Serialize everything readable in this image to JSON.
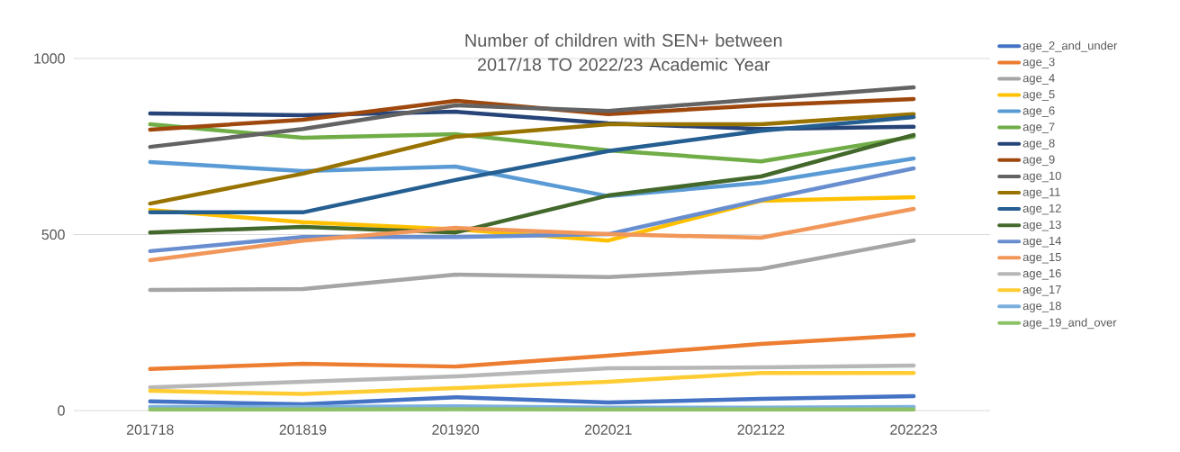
{
  "chart_data": {
    "type": "line",
    "title": "Number of children with SEN+ between 2017/18 TO 2022/23 Academic Year",
    "categories": [
      "201718",
      "201819",
      "201920",
      "202021",
      "202122",
      "202223"
    ],
    "ylim": [
      0,
      1000
    ],
    "yticks": [
      0,
      500,
      1000
    ],
    "grid": "y",
    "legend": "right",
    "marker": "none",
    "line_style": "solid",
    "series": [
      {
        "name": "age_2_and_under",
        "color": "#4472c4",
        "values": [
          26,
          18,
          38,
          23,
          33,
          41
        ]
      },
      {
        "name": "age_3",
        "color": "#ed7d31",
        "values": [
          118,
          133,
          125,
          156,
          189,
          215
        ]
      },
      {
        "name": "age_4",
        "color": "#a5a5a5",
        "values": [
          343,
          345,
          386,
          379,
          402,
          483
        ]
      },
      {
        "name": "age_5",
        "color": "#ffc000",
        "values": [
          570,
          535,
          515,
          483,
          596,
          606
        ]
      },
      {
        "name": "age_6",
        "color": "#5b9bd5",
        "values": [
          706,
          680,
          693,
          609,
          647,
          716
        ]
      },
      {
        "name": "age_7",
        "color": "#70ad47",
        "values": [
          813,
          775,
          785,
          739,
          708,
          778
        ]
      },
      {
        "name": "age_8",
        "color": "#264478",
        "values": [
          844,
          839,
          849,
          816,
          800,
          806
        ]
      },
      {
        "name": "age_9",
        "color": "#9e480e",
        "values": [
          798,
          826,
          880,
          842,
          867,
          885
        ]
      },
      {
        "name": "age_10",
        "color": "#636363",
        "values": [
          749,
          800,
          867,
          851,
          885,
          918
        ]
      },
      {
        "name": "age_11",
        "color": "#997300",
        "values": [
          588,
          673,
          778,
          813,
          813,
          842
        ]
      },
      {
        "name": "age_12",
        "color": "#255e91",
        "values": [
          563,
          563,
          655,
          737,
          795,
          834
        ]
      },
      {
        "name": "age_13",
        "color": "#43682b",
        "values": [
          506,
          522,
          506,
          611,
          665,
          783
        ]
      },
      {
        "name": "age_14",
        "color": "#698ed0",
        "values": [
          453,
          493,
          493,
          501,
          598,
          688
        ]
      },
      {
        "name": "age_15",
        "color": "#f1975a",
        "values": [
          427,
          483,
          519,
          501,
          491,
          573
        ]
      },
      {
        "name": "age_16",
        "color": "#b7b7b7",
        "values": [
          66,
          82,
          97,
          120,
          123,
          128
        ]
      },
      {
        "name": "age_17",
        "color": "#ffcd33",
        "values": [
          56,
          47,
          64,
          82,
          107,
          107
        ]
      },
      {
        "name": "age_18",
        "color": "#7cafdd",
        "values": [
          10,
          10,
          12,
          8,
          8,
          10
        ]
      },
      {
        "name": "age_19_and_over",
        "color": "#8cc168",
        "values": [
          3,
          3,
          4,
          3,
          3,
          3
        ]
      }
    ]
  }
}
